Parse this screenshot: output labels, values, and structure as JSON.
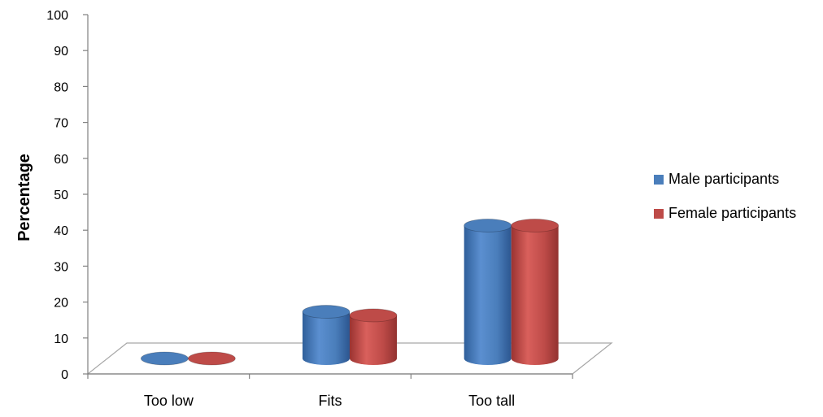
{
  "chart_data": {
    "type": "bar",
    "title": "",
    "xlabel": "",
    "ylabel": "Percentage",
    "ylim": [
      0,
      100
    ],
    "y_ticks": [
      "0",
      "10",
      "20",
      "30",
      "40",
      "50",
      "60",
      "70",
      "80",
      "90",
      "100"
    ],
    "categories": [
      "Too low",
      "Fits",
      "Too tall"
    ],
    "series": [
      {
        "name": "Male participants",
        "values": [
          0,
          13,
          37
        ],
        "color": "#4a7ebb"
      },
      {
        "name": "Female participants",
        "values": [
          0,
          12,
          37
        ],
        "color": "#be4b48"
      }
    ],
    "style": "3d-cylinder",
    "grid": false,
    "legend_position": "right"
  }
}
